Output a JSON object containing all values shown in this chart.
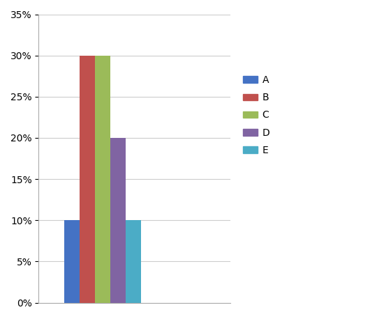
{
  "categories": [
    ""
  ],
  "series": [
    {
      "label": "A",
      "value": 0.1,
      "color": "#4472C4"
    },
    {
      "label": "B",
      "value": 0.3,
      "color": "#C0504D"
    },
    {
      "label": "C",
      "value": 0.3,
      "color": "#9BBB59"
    },
    {
      "label": "D",
      "value": 0.2,
      "color": "#8064A2"
    },
    {
      "label": "E",
      "value": 0.1,
      "color": "#4BACC6"
    }
  ],
  "ylim": [
    0,
    0.35
  ],
  "yticks": [
    0.0,
    0.05,
    0.1,
    0.15,
    0.2,
    0.25,
    0.3,
    0.35
  ],
  "ytick_labels": [
    "0%",
    "5%",
    "10%",
    "15%",
    "20%",
    "25%",
    "30%",
    "35%"
  ],
  "grid": true,
  "background_color": "#ffffff",
  "plot_bg_color": "#ffffff",
  "bar_width": 0.12,
  "legend_fontsize": 10,
  "tick_fontsize": 10,
  "border_color": "#aaaaaa"
}
